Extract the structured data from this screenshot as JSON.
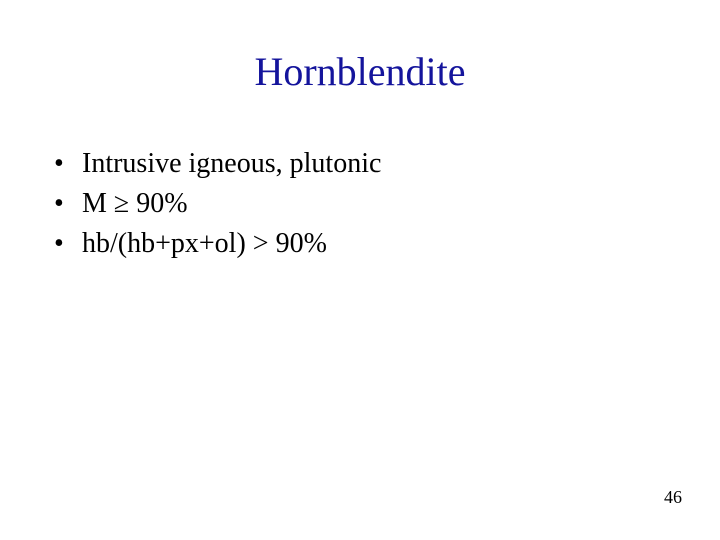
{
  "title": {
    "text": "Hornblendite",
    "color": "#14149c",
    "fontsize_pt": 40
  },
  "bullets": {
    "items": [
      "Intrusive igneous, plutonic",
      "M ≥ 90%",
      "hb/(hb+px+ol) > 90%"
    ],
    "color": "#000000",
    "fontsize_pt": 28
  },
  "page_number": {
    "value": "46",
    "color": "#000000",
    "fontsize_pt": 18
  },
  "background_color": "#ffffff"
}
